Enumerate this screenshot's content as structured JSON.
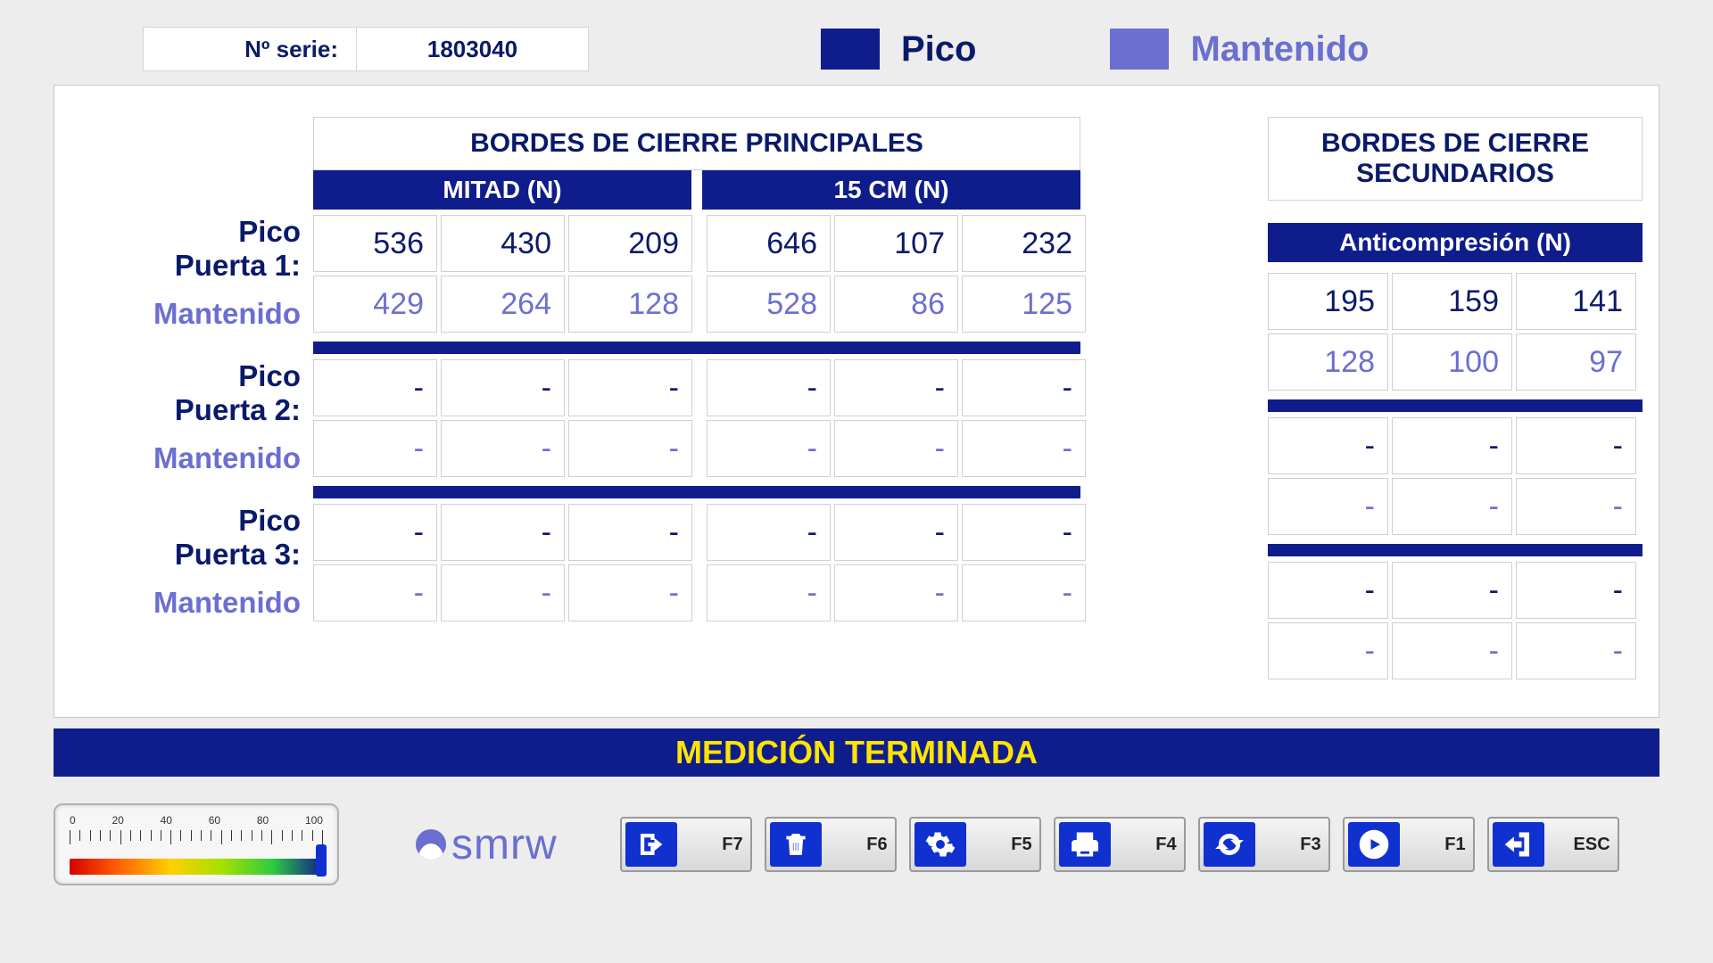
{
  "colors": {
    "primary": "#0f1d8c",
    "primary_text": "#0a1a6a",
    "secondary": "#6b6fd0",
    "status_text": "#ffe400",
    "background": "#ededed",
    "panel_bg": "#ffffff",
    "cell_border": "#d0d0d0"
  },
  "serial": {
    "label": "Nº serie:",
    "value": "1803040"
  },
  "legend": {
    "pico": {
      "label": "Pico",
      "color": "#0f1d8c"
    },
    "mant": {
      "label": "Mantenido",
      "color": "#6b6fd0"
    }
  },
  "main": {
    "title": "BORDES DE CIERRE PRINCIPALES",
    "sub": {
      "mitad": "MITAD (N)",
      "cm15": "15 CM (N)"
    }
  },
  "side": {
    "title": "BORDES DE CIERRE SECUNDARIOS",
    "sub": "Anticompresión (N)"
  },
  "labels": {
    "pico": "Pico",
    "mant": "Mantenido",
    "puerta": "Puerta"
  },
  "doors": [
    {
      "n": "1",
      "main_pico": [
        "536",
        "430",
        "209",
        "646",
        "107",
        "232"
      ],
      "main_mant": [
        "429",
        "264",
        "128",
        "528",
        "86",
        "125"
      ],
      "side_pico": [
        "195",
        "159",
        "141"
      ],
      "side_mant": [
        "128",
        "100",
        "97"
      ]
    },
    {
      "n": "2",
      "main_pico": [
        "-",
        "-",
        "-",
        "-",
        "-",
        "-"
      ],
      "main_mant": [
        "-",
        "-",
        "-",
        "-",
        "-",
        "-"
      ],
      "side_pico": [
        "-",
        "-",
        "-"
      ],
      "side_mant": [
        "-",
        "-",
        "-"
      ]
    },
    {
      "n": "3",
      "main_pico": [
        "-",
        "-",
        "-",
        "-",
        "-",
        "-"
      ],
      "main_mant": [
        "-",
        "-",
        "-",
        "-",
        "-",
        "-"
      ],
      "side_pico": [
        "-",
        "-",
        "-"
      ],
      "side_mant": [
        "-",
        "-",
        "-"
      ]
    }
  ],
  "status": "MEDICIÓN TERMINADA",
  "gauge": {
    "ticks": [
      "0",
      "20",
      "40",
      "60",
      "80",
      "100"
    ],
    "value": 100,
    "min": 0,
    "max": 100,
    "gradient": [
      "#d60000",
      "#ff5a00",
      "#ffd000",
      "#a7e000",
      "#2ecc40",
      "#0f1d8c"
    ]
  },
  "brand": "smrw",
  "fkeys": [
    {
      "key": "F7",
      "icon": "export"
    },
    {
      "key": "F6",
      "icon": "trash"
    },
    {
      "key": "F5",
      "icon": "settings"
    },
    {
      "key": "F4",
      "icon": "print"
    },
    {
      "key": "F3",
      "icon": "sync"
    },
    {
      "key": "F1",
      "icon": "play"
    },
    {
      "key": "ESC",
      "icon": "exit"
    }
  ]
}
